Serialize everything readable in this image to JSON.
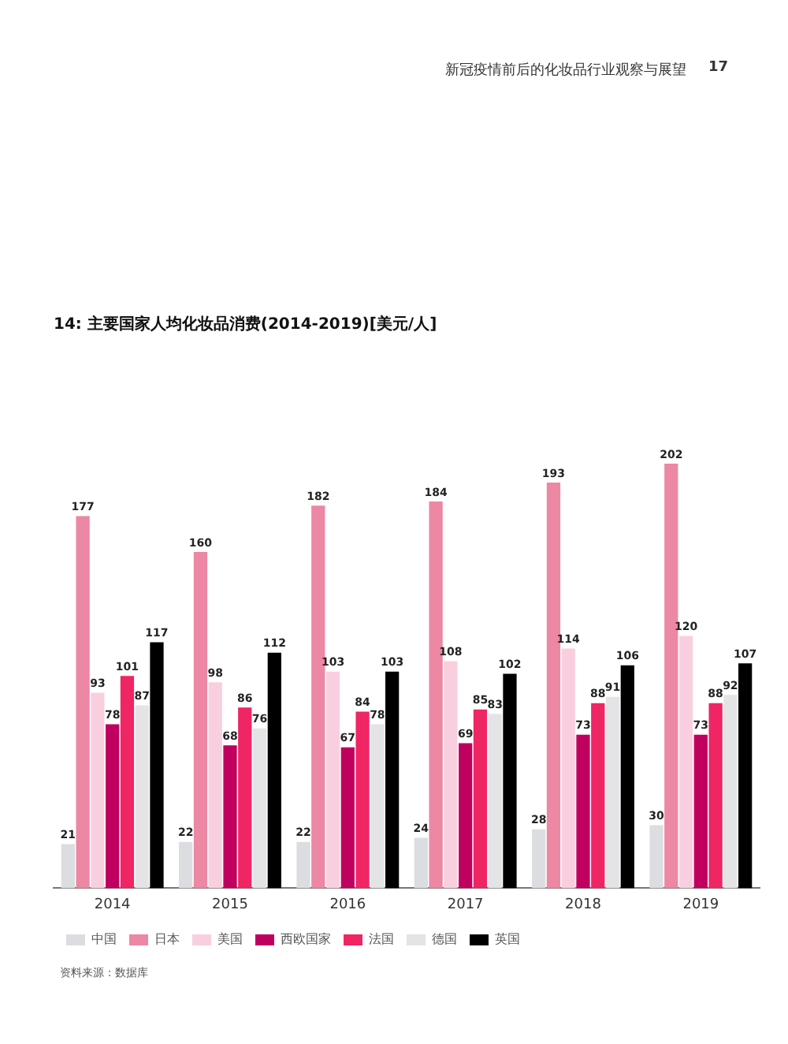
{
  "chart_data": {
    "type": "bar",
    "title": "14: 主要国家人均化妆品消费(2014-2019)[美元/人]",
    "categories": [
      "2014",
      "2015",
      "2016",
      "2017",
      "2018",
      "2019"
    ],
    "series": [
      {
        "name": "中国",
        "color": "#dcdde0",
        "values": [
          21,
          22,
          22,
          24,
          28,
          30
        ]
      },
      {
        "name": "日本",
        "color": "#ec87a4",
        "values": [
          177,
          160,
          182,
          184,
          193,
          202
        ]
      },
      {
        "name": "美国",
        "color": "#f9cfe0",
        "values": [
          93,
          98,
          103,
          108,
          114,
          120
        ]
      },
      {
        "name": "西欧国家",
        "color": "#c0005f",
        "values": [
          78,
          68,
          67,
          69,
          73,
          73
        ]
      },
      {
        "name": "法国",
        "color": "#ef2564",
        "values": [
          101,
          86,
          84,
          85,
          88,
          88
        ]
      },
      {
        "name": "德国",
        "color": "#e4e4e7",
        "values": [
          87,
          76,
          78,
          83,
          91,
          92
        ]
      },
      {
        "name": "英国",
        "color": "#000000",
        "values": [
          117,
          112,
          103,
          102,
          106,
          107
        ]
      }
    ],
    "data_labels": true,
    "tick_labels": "x",
    "grid": false,
    "legend": "bottom left",
    "annotations": [
      "新冠疫情前后的化妆品行业观察与展望",
      "17",
      "资料来源：数据库"
    ]
  }
}
